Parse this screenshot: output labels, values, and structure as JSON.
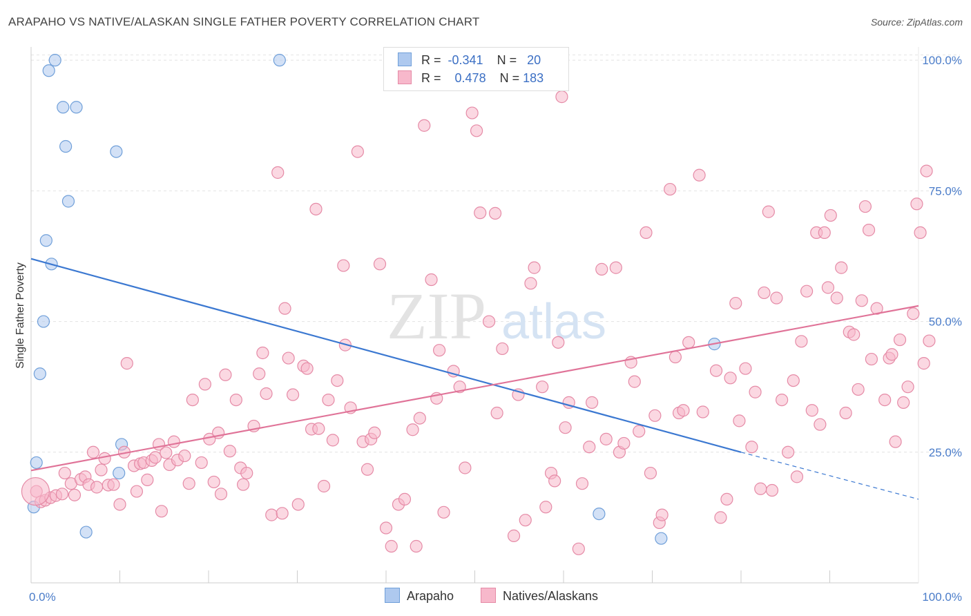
{
  "header": {
    "title": "ARAPAHO VS NATIVE/ALASKAN SINGLE FATHER POVERTY CORRELATION CHART",
    "source": "Source: ZipAtlas.com"
  },
  "watermark": {
    "zip": "ZIP",
    "atlas": "atlas"
  },
  "legend": {
    "rows": [
      {
        "r_label": "R =",
        "r_value": "-0.341",
        "n_label": "N =",
        "n_value": "20",
        "color": "#aec9ef",
        "stroke": "#6f9fd9"
      },
      {
        "r_label": "R =",
        "r_value": "0.478",
        "n_label": "N =",
        "n_value": "183",
        "color": "#f7b8cb",
        "stroke": "#e58aa6"
      }
    ]
  },
  "bottom_legend": {
    "items": [
      {
        "label": "Arapaho",
        "color": "#aec9ef",
        "stroke": "#6f9fd9"
      },
      {
        "label": "Natives/Alaskans",
        "color": "#f7b8cb",
        "stroke": "#e58aa6"
      }
    ]
  },
  "chart_data": {
    "type": "scatter",
    "title": "ARAPAHO VS NATIVE/ALASKAN SINGLE FATHER POVERTY CORRELATION CHART",
    "xlabel": "",
    "ylabel": "Single Father Poverty",
    "xlim": [
      0,
      100
    ],
    "ylim": [
      0,
      102
    ],
    "x_tick_labels": [
      "0.0%",
      "100.0%"
    ],
    "y_ticks": [
      25,
      50,
      75,
      100
    ],
    "y_tick_labels": [
      "25.0%",
      "50.0%",
      "75.0%",
      "100.0%"
    ],
    "grid": true,
    "legend_position": "top-center",
    "series": [
      {
        "name": "Arapaho",
        "color": "#aec9ef",
        "stroke": "#6f9fd9",
        "trend_color": "#3b78d1",
        "trend": {
          "x0": 0,
          "y0": 62,
          "x1": 80,
          "y1": 25,
          "dash_to_x": 100,
          "dash_to_y": 16
        },
        "points": [
          [
            2.7,
            100
          ],
          [
            2.0,
            98
          ],
          [
            28,
            100
          ],
          [
            3.6,
            91
          ],
          [
            5.1,
            91
          ],
          [
            3.9,
            83.5
          ],
          [
            9.6,
            82.5
          ],
          [
            4.2,
            73
          ],
          [
            1.7,
            65.5
          ],
          [
            2.3,
            61
          ],
          [
            1.4,
            50
          ],
          [
            1.0,
            40
          ],
          [
            0.6,
            23
          ],
          [
            10.2,
            26.5
          ],
          [
            9.9,
            21
          ],
          [
            0.3,
            14.5
          ],
          [
            6.2,
            9.7
          ],
          [
            64,
            13.2
          ],
          [
            71,
            8.5
          ],
          [
            77,
            45.7
          ]
        ]
      },
      {
        "name": "Natives/Alaskans",
        "color": "#f7b8cb",
        "stroke": "#e58aa6",
        "trend_color": "#e07398",
        "trend": {
          "x0": 0,
          "y0": 21.5,
          "x1": 100,
          "y1": 53
        },
        "points": [
          [
            0.6,
            17.5
          ],
          [
            1.1,
            15.5
          ],
          [
            1.6,
            15.8
          ],
          [
            2.2,
            16.3
          ],
          [
            2.8,
            16.7
          ],
          [
            3.5,
            17.0
          ],
          [
            3.8,
            21.0
          ],
          [
            4.5,
            19.0
          ],
          [
            4.9,
            16.8
          ],
          [
            5.6,
            19.8
          ],
          [
            6.1,
            20.3
          ],
          [
            6.5,
            18.8
          ],
          [
            7.0,
            25.0
          ],
          [
            7.4,
            18.3
          ],
          [
            7.9,
            21.6
          ],
          [
            8.3,
            23.8
          ],
          [
            8.7,
            18.7
          ],
          [
            9.3,
            18.8
          ],
          [
            10.0,
            15.0
          ],
          [
            10.5,
            25.0
          ],
          [
            10.8,
            42.0
          ],
          [
            11.6,
            22.4
          ],
          [
            11.9,
            17.5
          ],
          [
            12.3,
            22.8
          ],
          [
            12.7,
            23.0
          ],
          [
            13.1,
            19.7
          ],
          [
            13.6,
            23.4
          ],
          [
            14.0,
            24.0
          ],
          [
            14.4,
            26.5
          ],
          [
            14.7,
            13.7
          ],
          [
            15.2,
            24.9
          ],
          [
            15.6,
            22.6
          ],
          [
            16.1,
            27.0
          ],
          [
            16.5,
            23.5
          ],
          [
            17.3,
            24.3
          ],
          [
            17.8,
            19.0
          ],
          [
            18.2,
            35.0
          ],
          [
            19.2,
            23.0
          ],
          [
            19.6,
            38.0
          ],
          [
            20.1,
            27.5
          ],
          [
            20.6,
            19.3
          ],
          [
            21.1,
            28.7
          ],
          [
            21.4,
            17.0
          ],
          [
            21.9,
            39.8
          ],
          [
            22.4,
            25.2
          ],
          [
            23.1,
            35.0
          ],
          [
            23.6,
            22.0
          ],
          [
            23.9,
            18.8
          ],
          [
            24.3,
            21.0
          ],
          [
            25.1,
            30.0
          ],
          [
            25.7,
            40.0
          ],
          [
            26.1,
            44.0
          ],
          [
            26.5,
            36.2
          ],
          [
            27.1,
            13.0
          ],
          [
            27.8,
            78.5
          ],
          [
            28.3,
            13.3
          ],
          [
            28.6,
            52.5
          ],
          [
            29.0,
            43.0
          ],
          [
            29.5,
            36.0
          ],
          [
            30.1,
            15.0
          ],
          [
            30.7,
            41.5
          ],
          [
            31.1,
            41.0
          ],
          [
            31.6,
            29.4
          ],
          [
            32.1,
            71.5
          ],
          [
            32.4,
            29.5
          ],
          [
            33.0,
            18.5
          ],
          [
            33.5,
            35.0
          ],
          [
            34.0,
            27.3
          ],
          [
            34.5,
            38.7
          ],
          [
            35.2,
            60.7
          ],
          [
            35.4,
            45.5
          ],
          [
            36.0,
            33.5
          ],
          [
            36.8,
            82.5
          ],
          [
            37.4,
            27.0
          ],
          [
            37.9,
            21.7
          ],
          [
            38.3,
            27.5
          ],
          [
            38.7,
            28.7
          ],
          [
            39.3,
            61.0
          ],
          [
            40.0,
            10.5
          ],
          [
            40.6,
            7.0
          ],
          [
            41.4,
            15.0
          ],
          [
            42.1,
            16.0
          ],
          [
            43.0,
            29.3
          ],
          [
            43.4,
            7.0
          ],
          [
            43.8,
            31.5
          ],
          [
            44.3,
            87.5
          ],
          [
            45.1,
            58.0
          ],
          [
            45.7,
            35.3
          ],
          [
            46.0,
            44.5
          ],
          [
            46.5,
            13.5
          ],
          [
            47.6,
            40.5
          ],
          [
            48.3,
            37.5
          ],
          [
            48.9,
            22.0
          ],
          [
            49.7,
            89.9
          ],
          [
            50.2,
            86.5
          ],
          [
            50.6,
            70.8
          ],
          [
            51.6,
            50.0
          ],
          [
            52.3,
            70.7
          ],
          [
            52.5,
            32.5
          ],
          [
            53.1,
            44.8
          ],
          [
            54.4,
            9.0
          ],
          [
            54.9,
            36.0
          ],
          [
            55.7,
            12.0
          ],
          [
            56.3,
            57.3
          ],
          [
            56.7,
            60.3
          ],
          [
            57.6,
            37.5
          ],
          [
            58.0,
            14.5
          ],
          [
            58.6,
            21.0
          ],
          [
            59.0,
            19.5
          ],
          [
            59.4,
            46.0
          ],
          [
            59.8,
            93.0
          ],
          [
            60.2,
            29.7
          ],
          [
            60.6,
            34.5
          ],
          [
            61.7,
            6.5
          ],
          [
            62.1,
            19.0
          ],
          [
            62.9,
            26.0
          ],
          [
            63.2,
            34.5
          ],
          [
            64.3,
            60.0
          ],
          [
            64.8,
            27.5
          ],
          [
            65.9,
            60.3
          ],
          [
            66.3,
            25.0
          ],
          [
            66.8,
            26.7
          ],
          [
            67.6,
            42.2
          ],
          [
            68.0,
            38.5
          ],
          [
            68.5,
            29.0
          ],
          [
            69.3,
            67.0
          ],
          [
            69.8,
            21.0
          ],
          [
            70.3,
            32.0
          ],
          [
            70.8,
            11.5
          ],
          [
            71.1,
            13.0
          ],
          [
            72.0,
            75.3
          ],
          [
            72.6,
            43.2
          ],
          [
            73.0,
            32.5
          ],
          [
            73.5,
            33.0
          ],
          [
            74.1,
            46.0
          ],
          [
            75.3,
            78.0
          ],
          [
            75.7,
            32.7
          ],
          [
            77.2,
            40.6
          ],
          [
            77.7,
            12.5
          ],
          [
            78.4,
            16.0
          ],
          [
            78.8,
            39.2
          ],
          [
            79.4,
            53.5
          ],
          [
            79.8,
            31.0
          ],
          [
            80.5,
            41.0
          ],
          [
            81.2,
            26.0
          ],
          [
            81.6,
            36.5
          ],
          [
            82.2,
            18.0
          ],
          [
            82.6,
            55.5
          ],
          [
            83.1,
            71.0
          ],
          [
            83.5,
            17.7
          ],
          [
            84.0,
            54.5
          ],
          [
            84.6,
            35.0
          ],
          [
            85.3,
            25.0
          ],
          [
            85.9,
            38.7
          ],
          [
            86.3,
            20.3
          ],
          [
            86.8,
            46.2
          ],
          [
            87.4,
            55.8
          ],
          [
            88.0,
            33.0
          ],
          [
            88.5,
            67.0
          ],
          [
            88.9,
            30.3
          ],
          [
            89.4,
            67.0
          ],
          [
            89.8,
            56.5
          ],
          [
            90.1,
            70.3
          ],
          [
            90.8,
            54.5
          ],
          [
            91.3,
            60.3
          ],
          [
            91.8,
            32.5
          ],
          [
            92.2,
            48.0
          ],
          [
            92.7,
            47.5
          ],
          [
            93.2,
            37.0
          ],
          [
            93.6,
            54.0
          ],
          [
            94.0,
            72.0
          ],
          [
            94.4,
            67.5
          ],
          [
            94.7,
            42.8
          ],
          [
            95.3,
            52.5
          ],
          [
            96.2,
            35.0
          ],
          [
            96.7,
            43.0
          ],
          [
            97.0,
            43.7
          ],
          [
            97.4,
            27.0
          ],
          [
            97.9,
            46.5
          ],
          [
            98.3,
            34.5
          ],
          [
            98.8,
            37.5
          ],
          [
            99.4,
            51.5
          ],
          [
            99.8,
            72.5
          ],
          [
            100.2,
            67.0
          ],
          [
            100.6,
            42.0
          ],
          [
            100.9,
            78.8
          ],
          [
            101.2,
            46.3
          ]
        ]
      }
    ]
  }
}
